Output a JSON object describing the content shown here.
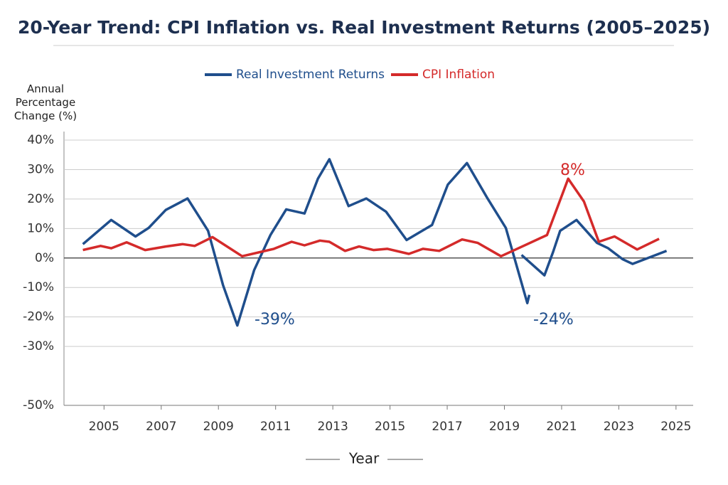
{
  "chart_data": {
    "type": "line",
    "title": "20-Year Trend: CPI Inflation vs. Real Investment Returns (2005–2025)",
    "y_label": "Annual Percentage Change (%)",
    "x_label": "Year",
    "xlim": [
      2003.6,
      2025.6
    ],
    "xticks": [
      2005,
      2007,
      2009,
      2011,
      2013,
      2015,
      2017,
      2019,
      2021,
      2023,
      2025
    ],
    "ylim": [
      -50,
      40
    ],
    "yticks": [
      {
        "value": 40,
        "label": "40%"
      },
      {
        "value": 30,
        "label": "30%"
      },
      {
        "value": 20,
        "label": "20%"
      },
      {
        "value": 10,
        "label": "10%"
      },
      {
        "value": 0,
        "label": "0%"
      },
      {
        "value": -10,
        "label": "-10%"
      },
      {
        "value": -20,
        "label": "-20%"
      },
      {
        "value": -30,
        "label": "-30%"
      },
      {
        "value": -50,
        "label": "-50%"
      }
    ],
    "grid": true,
    "legend": "top",
    "series": [
      {
        "name": "Real Investment Returns",
        "color": "#1f4e8c",
        "x": [
          2004.26,
          2005.25,
          2006.1,
          2006.56,
          2007.16,
          2007.92,
          2008.64,
          2009.16,
          2009.66,
          2010.25,
          2010.82,
          2011.37,
          2012.01,
          2012.48,
          2012.88,
          2013.55,
          2014.17,
          2014.86,
          2015.58,
          2016.47,
          2017.02,
          2017.69,
          2018.41,
          2019.05,
          2019.8,
          2019.87,
          2019.7,
          2019.6,
          2020.4,
          2020.7,
          2020.95,
          2021.52,
          2022.24,
          2022.63,
          2023.13,
          2023.48,
          2024.67
        ],
        "values": [
          4.7,
          12.9,
          7.3,
          10.2,
          16.3,
          20.2,
          9.2,
          -9.2,
          -22.9,
          -4.1,
          7.8,
          16.5,
          15.1,
          26.9,
          33.5,
          17.6,
          20.2,
          15.7,
          6.1,
          11.2,
          24.9,
          32.2,
          20.2,
          10.2,
          -15.3,
          -12.5,
          null,
          1.0,
          -5.9,
          2,
          9.2,
          12.9,
          5.1,
          3.3,
          -0.4,
          -2,
          2.4
        ]
      },
      {
        "name": "CPI Inflation",
        "color": "#d42a2a",
        "x": [
          2004.26,
          2004.88,
          2005.25,
          2005.79,
          2006.44,
          2007.16,
          2007.75,
          2008.17,
          2008.79,
          2009.83,
          2010.94,
          2011.56,
          2012.01,
          2012.55,
          2012.88,
          2013.43,
          2013.92,
          2014.42,
          2014.91,
          2015.66,
          2016.15,
          2016.72,
          2017.52,
          2018.07,
          2018.88,
          2019.8,
          2020.49,
          2021.23,
          2021.78,
          2022.3,
          2022.85,
          2023.64,
          2024.41
        ],
        "values": [
          2.7,
          4.1,
          3.3,
          5.3,
          2.7,
          3.9,
          4.7,
          4.1,
          7.1,
          0.6,
          3.1,
          5.5,
          4.3,
          5.9,
          5.5,
          2.4,
          3.9,
          2.7,
          3.1,
          1.4,
          3.1,
          2.4,
          6.3,
          5.1,
          0.6,
          4.7,
          7.8,
          26.9,
          19.2,
          5.5,
          7.3,
          2.9,
          6.5
        ]
      }
    ],
    "annotations": [
      "-39%",
      "-24%",
      "8%"
    ]
  }
}
